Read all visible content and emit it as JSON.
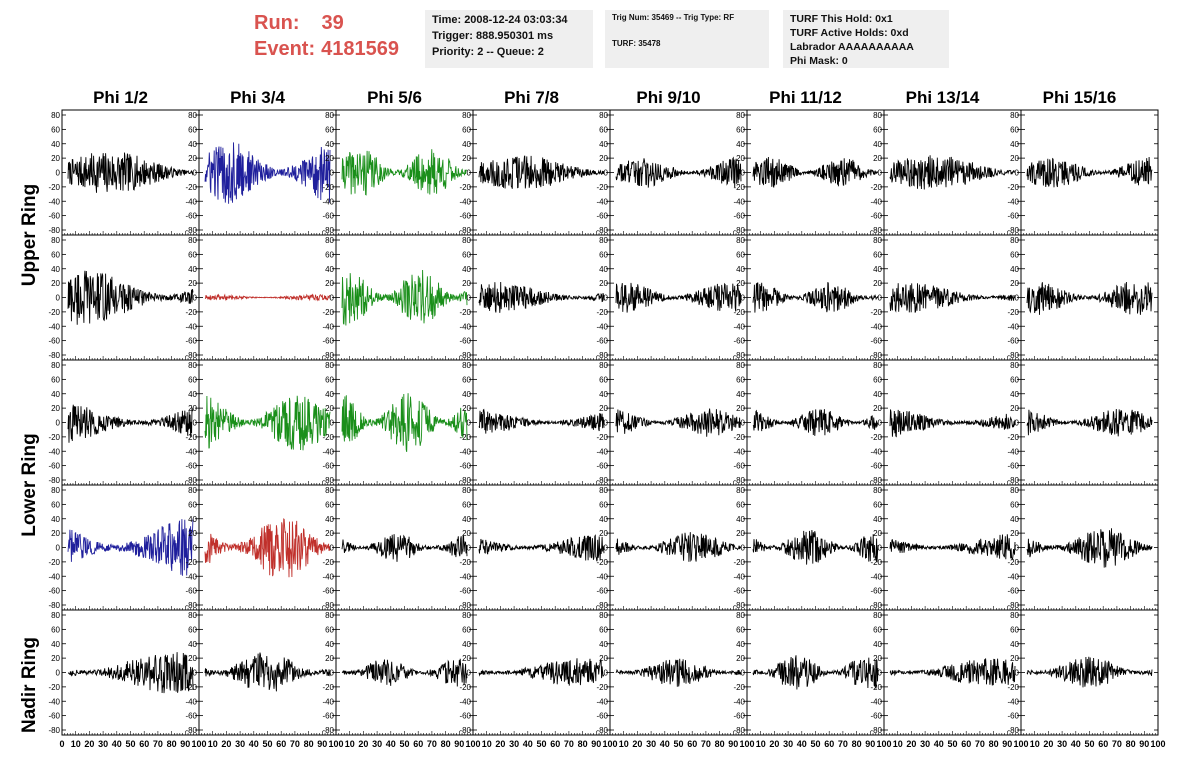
{
  "header": {
    "run_label": "Run:",
    "run_value": "39",
    "event_label": "Event:",
    "event_value": "4181569",
    "accent_color": "#d9534f"
  },
  "info_box_1": {
    "time": "Time: 2008-12-24 03:03:34",
    "trigger": "Trigger: 888.950301 ms",
    "priority": "Priority: 2 -- Queue: 2"
  },
  "info_box_2": {
    "trig": "Trig Num: 35469 -- Trig Type: RF",
    "turf": "TURF: 35478"
  },
  "info_box_3": {
    "hold": "TURF This Hold: 0x1",
    "active": "TURF Active Holds: 0xd",
    "labrador": "Labrador AAAAAAAAAA",
    "phimask": "Phi Mask: 0"
  },
  "columns": [
    "Phi 1/2",
    "Phi 3/4",
    "Phi 5/6",
    "Phi 7/8",
    "Phi 9/10",
    "Phi 11/12",
    "Phi 13/14",
    "Phi 15/16"
  ],
  "rings": {
    "upper": "Upper Ring",
    "lower": "Lower Ring",
    "nadir": "Nadir Ring"
  },
  "chart_data": {
    "type": "line",
    "rows": 5,
    "cols": 8,
    "ylim": [
      -80,
      80
    ],
    "xlim": [
      0,
      100
    ],
    "y_ticks": [
      80,
      60,
      40,
      20,
      0,
      -20,
      -40,
      -60,
      -80
    ],
    "x_ticks": [
      0,
      10,
      20,
      30,
      40,
      50,
      60,
      70,
      80,
      90,
      100
    ],
    "x_tick_labels": [
      "0",
      "10",
      "20",
      "30",
      "40",
      "50",
      "60",
      "70",
      "80",
      "90",
      "100"
    ],
    "trace_colors": {
      "black": "#000000",
      "blue": "#1f1f9c",
      "green": "#1a8f1a",
      "red": "#c0302b"
    },
    "panels": [
      {
        "row": 0,
        "col": 0,
        "color": "black",
        "amplitude": 30
      },
      {
        "row": 0,
        "col": 1,
        "color": "blue",
        "amplitude": 45
      },
      {
        "row": 0,
        "col": 2,
        "color": "green",
        "amplitude": 35
      },
      {
        "row": 0,
        "col": 3,
        "color": "black",
        "amplitude": 25
      },
      {
        "row": 0,
        "col": 4,
        "color": "black",
        "amplitude": 22
      },
      {
        "row": 0,
        "col": 5,
        "color": "black",
        "amplitude": 22
      },
      {
        "row": 0,
        "col": 6,
        "color": "black",
        "amplitude": 25
      },
      {
        "row": 0,
        "col": 7,
        "color": "black",
        "amplitude": 22
      },
      {
        "row": 1,
        "col": 0,
        "color": "black",
        "amplitude": 40
      },
      {
        "row": 1,
        "col": 1,
        "color": "red",
        "amplitude": 4
      },
      {
        "row": 1,
        "col": 2,
        "color": "green",
        "amplitude": 40
      },
      {
        "row": 1,
        "col": 3,
        "color": "black",
        "amplitude": 22
      },
      {
        "row": 1,
        "col": 4,
        "color": "black",
        "amplitude": 22
      },
      {
        "row": 1,
        "col": 5,
        "color": "black",
        "amplitude": 22
      },
      {
        "row": 1,
        "col": 6,
        "color": "black",
        "amplitude": 22
      },
      {
        "row": 1,
        "col": 7,
        "color": "black",
        "amplitude": 25
      },
      {
        "row": 2,
        "col": 0,
        "color": "black",
        "amplitude": 30
      },
      {
        "row": 2,
        "col": 1,
        "color": "green",
        "amplitude": 40
      },
      {
        "row": 2,
        "col": 2,
        "color": "green",
        "amplitude": 45
      },
      {
        "row": 2,
        "col": 3,
        "color": "black",
        "amplitude": 20
      },
      {
        "row": 2,
        "col": 4,
        "color": "black",
        "amplitude": 20
      },
      {
        "row": 2,
        "col": 5,
        "color": "black",
        "amplitude": 20
      },
      {
        "row": 2,
        "col": 6,
        "color": "black",
        "amplitude": 22
      },
      {
        "row": 2,
        "col": 7,
        "color": "black",
        "amplitude": 20
      },
      {
        "row": 3,
        "col": 0,
        "color": "blue",
        "amplitude": 45
      },
      {
        "row": 3,
        "col": 1,
        "color": "red",
        "amplitude": 45
      },
      {
        "row": 3,
        "col": 2,
        "color": "black",
        "amplitude": 20
      },
      {
        "row": 3,
        "col": 3,
        "color": "black",
        "amplitude": 22
      },
      {
        "row": 3,
        "col": 4,
        "color": "black",
        "amplitude": 22
      },
      {
        "row": 3,
        "col": 5,
        "color": "black",
        "amplitude": 25
      },
      {
        "row": 3,
        "col": 6,
        "color": "black",
        "amplitude": 20
      },
      {
        "row": 3,
        "col": 7,
        "color": "black",
        "amplitude": 28
      },
      {
        "row": 4,
        "col": 0,
        "color": "black",
        "amplitude": 30
      },
      {
        "row": 4,
        "col": 1,
        "color": "black",
        "amplitude": 30
      },
      {
        "row": 4,
        "col": 2,
        "color": "black",
        "amplitude": 20
      },
      {
        "row": 4,
        "col": 3,
        "color": "black",
        "amplitude": 20
      },
      {
        "row": 4,
        "col": 4,
        "color": "black",
        "amplitude": 20
      },
      {
        "row": 4,
        "col": 5,
        "color": "black",
        "amplitude": 25
      },
      {
        "row": 4,
        "col": 6,
        "color": "black",
        "amplitude": 20
      },
      {
        "row": 4,
        "col": 7,
        "color": "black",
        "amplitude": 22
      }
    ]
  }
}
